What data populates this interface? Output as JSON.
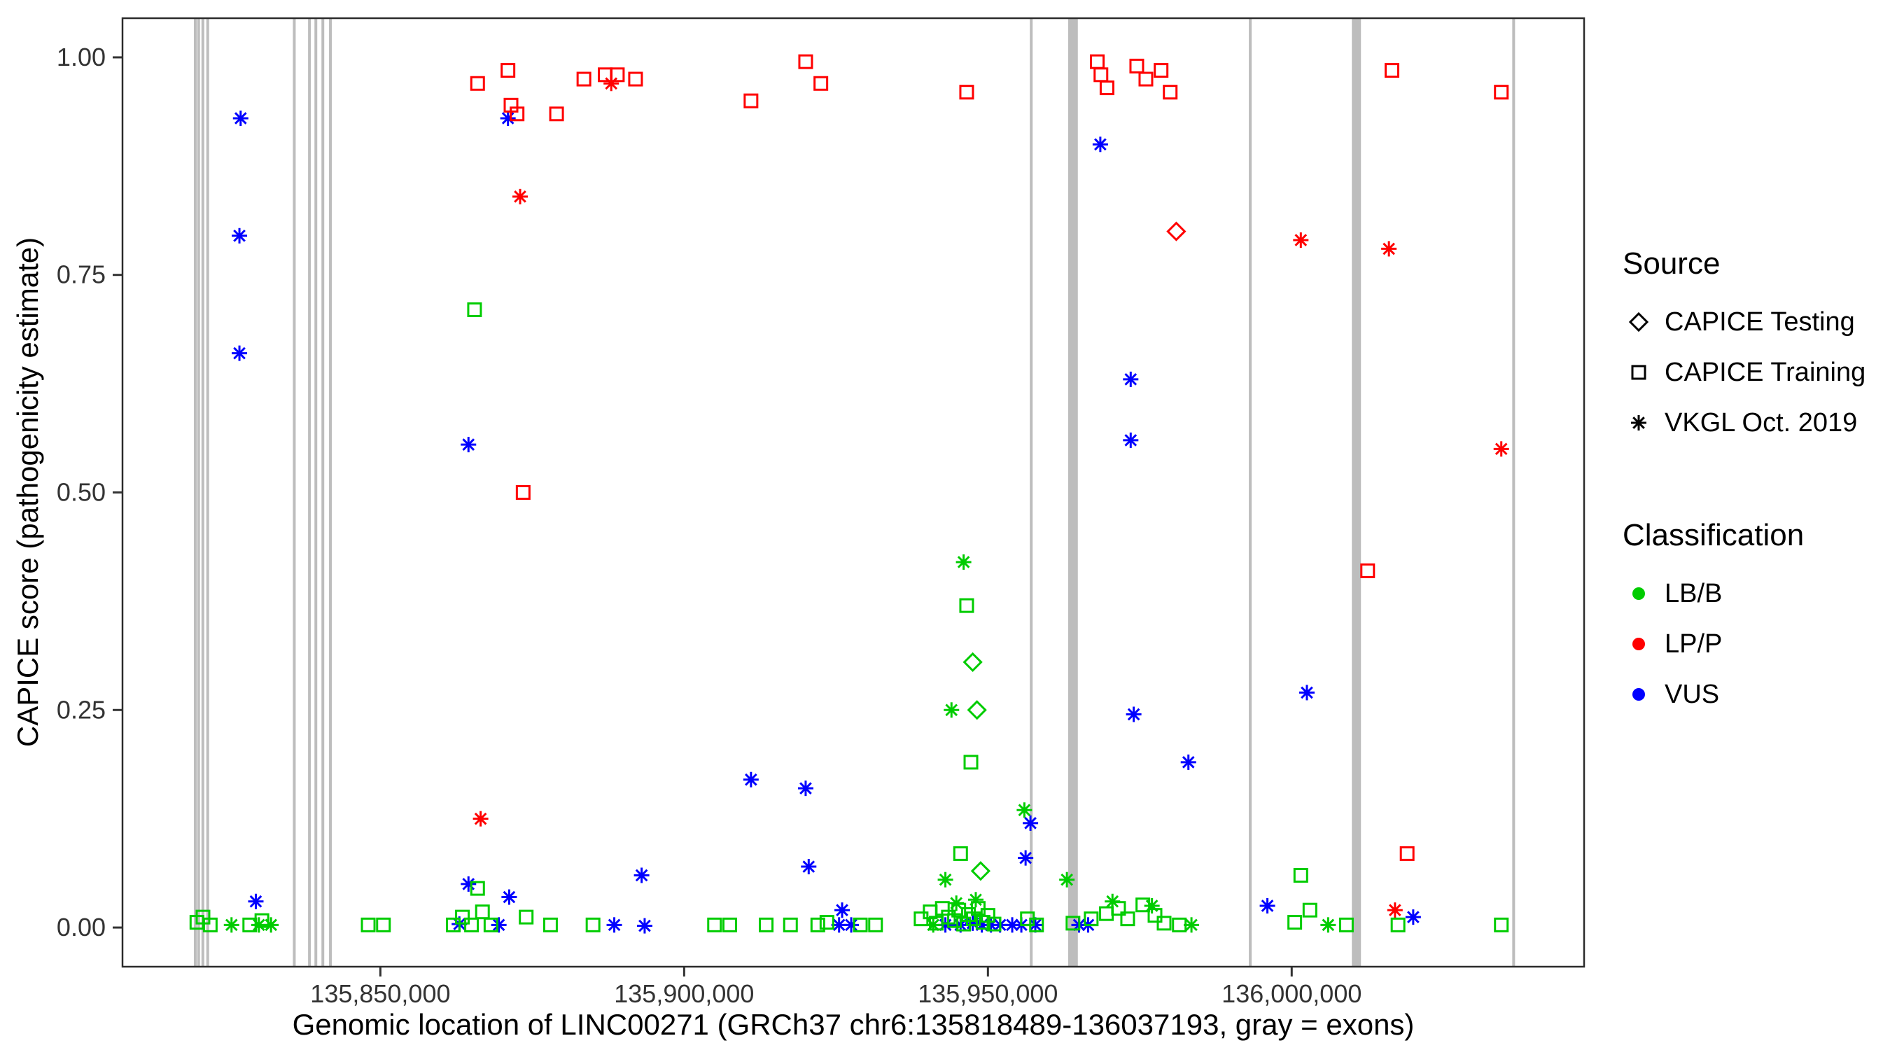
{
  "figure": {
    "background": "#FFFFFF",
    "panel_border": "#2B2B2B",
    "exon_color": "#BDBDBD"
  },
  "legend": {
    "source": {
      "title": "Source",
      "items": [
        {
          "label": "CAPICE Testing",
          "shape": "diamond"
        },
        {
          "label": "CAPICE Training",
          "shape": "square"
        },
        {
          "label": "VKGL Oct. 2019",
          "shape": "asterisk"
        }
      ]
    },
    "classification": {
      "title": "Classification",
      "items": [
        {
          "label": "LB/B",
          "color": "#00CC00"
        },
        {
          "label": "LP/P",
          "color": "#FF0000"
        },
        {
          "label": "VUS",
          "color": "#0000FF"
        }
      ]
    }
  },
  "chart_data": {
    "type": "scatter",
    "title": "",
    "xlabel": "Genomic location of LINC00271 (GRCh37 chr6:135818489-136037193, gray = exons)",
    "ylabel": "CAPICE score (pathogenicity estimate)",
    "xlim": [
      135807554,
      136048128
    ],
    "ylim": [
      -0.045,
      1.045
    ],
    "grid": false,
    "legend_position": "right",
    "xticks": [
      {
        "value": 135850000,
        "label": "135,850,000"
      },
      {
        "value": 135900000,
        "label": "135,900,000"
      },
      {
        "value": 135950000,
        "label": "135,950,000"
      },
      {
        "value": 136000000,
        "label": "136,000,000"
      }
    ],
    "yticks": [
      {
        "value": 0.0,
        "label": "0.00"
      },
      {
        "value": 0.25,
        "label": "0.25"
      },
      {
        "value": 0.5,
        "label": "0.50"
      },
      {
        "value": 0.75,
        "label": "0.75"
      },
      {
        "value": 1.0,
        "label": "1.00"
      }
    ],
    "shape_key": {
      "testing": "diamond",
      "training": "square",
      "vkgl": "asterisk"
    },
    "color_key": {
      "LB/B": "#00CC00",
      "LP/P": "#FF0000",
      "VUS": "#0000FF"
    },
    "exons": [
      [
        135819300,
        135819550
      ],
      [
        135819850,
        135820100
      ],
      [
        135820550,
        135820800
      ],
      [
        135821350,
        135821600
      ],
      [
        135835600,
        135835850
      ],
      [
        135838100,
        135838350
      ],
      [
        135839150,
        135839400
      ],
      [
        135840300,
        135840550
      ],
      [
        135841550,
        135841800
      ],
      [
        135956900,
        135957150
      ],
      [
        135963200,
        135964800
      ],
      [
        135992950,
        135993200
      ],
      [
        136009900,
        136011400
      ],
      [
        136036300,
        136036650
      ]
    ],
    "points": [
      {
        "x": 135827000,
        "y": 0.93,
        "source": "vkgl",
        "class": "VUS"
      },
      {
        "x": 135826800,
        "y": 0.795,
        "source": "vkgl",
        "class": "VUS"
      },
      {
        "x": 135826800,
        "y": 0.66,
        "source": "vkgl",
        "class": "VUS"
      },
      {
        "x": 135829500,
        "y": 0.03,
        "source": "vkgl",
        "class": "VUS"
      },
      {
        "x": 135864500,
        "y": 0.555,
        "source": "vkgl",
        "class": "VUS"
      },
      {
        "x": 135864500,
        "y": 0.05,
        "source": "vkgl",
        "class": "VUS"
      },
      {
        "x": 135871000,
        "y": 0.93,
        "source": "vkgl",
        "class": "VUS"
      },
      {
        "x": 135871200,
        "y": 0.035,
        "source": "vkgl",
        "class": "VUS"
      },
      {
        "x": 135863000,
        "y": 0.004,
        "source": "vkgl",
        "class": "VUS"
      },
      {
        "x": 135869500,
        "y": 0.003,
        "source": "vkgl",
        "class": "VUS"
      },
      {
        "x": 135888500,
        "y": 0.003,
        "source": "vkgl",
        "class": "VUS"
      },
      {
        "x": 135893000,
        "y": 0.06,
        "source": "vkgl",
        "class": "VUS"
      },
      {
        "x": 135893500,
        "y": 0.002,
        "source": "vkgl",
        "class": "VUS"
      },
      {
        "x": 135911000,
        "y": 0.17,
        "source": "vkgl",
        "class": "VUS"
      },
      {
        "x": 135920000,
        "y": 0.16,
        "source": "vkgl",
        "class": "VUS"
      },
      {
        "x": 135920500,
        "y": 0.07,
        "source": "vkgl",
        "class": "VUS"
      },
      {
        "x": 135926000,
        "y": 0.02,
        "source": "vkgl",
        "class": "VUS"
      },
      {
        "x": 135925500,
        "y": 0.003,
        "source": "vkgl",
        "class": "VUS"
      },
      {
        "x": 135927500,
        "y": 0.003,
        "source": "vkgl",
        "class": "VUS"
      },
      {
        "x": 135943000,
        "y": 0.003,
        "source": "vkgl",
        "class": "VUS"
      },
      {
        "x": 135945500,
        "y": 0.003,
        "source": "vkgl",
        "class": "VUS"
      },
      {
        "x": 135947500,
        "y": 0.005,
        "source": "vkgl",
        "class": "VUS"
      },
      {
        "x": 135949000,
        "y": 0.003,
        "source": "vkgl",
        "class": "VUS"
      },
      {
        "x": 135950500,
        "y": 0.003,
        "source": "vkgl",
        "class": "VUS"
      },
      {
        "x": 135952000,
        "y": 0.003,
        "source": "vkgl",
        "class": "VUS"
      },
      {
        "x": 135957000,
        "y": 0.12,
        "source": "vkgl",
        "class": "VUS"
      },
      {
        "x": 135956200,
        "y": 0.08,
        "source": "vkgl",
        "class": "VUS"
      },
      {
        "x": 135954000,
        "y": 0.003,
        "source": "vkgl",
        "class": "VUS"
      },
      {
        "x": 135955500,
        "y": 0.003,
        "source": "vkgl",
        "class": "VUS"
      },
      {
        "x": 135957800,
        "y": 0.003,
        "source": "vkgl",
        "class": "VUS"
      },
      {
        "x": 135968500,
        "y": 0.9,
        "source": "vkgl",
        "class": "VUS"
      },
      {
        "x": 135973500,
        "y": 0.63,
        "source": "vkgl",
        "class": "VUS"
      },
      {
        "x": 135973500,
        "y": 0.56,
        "source": "vkgl",
        "class": "VUS"
      },
      {
        "x": 135974000,
        "y": 0.245,
        "source": "vkgl",
        "class": "VUS"
      },
      {
        "x": 135983000,
        "y": 0.19,
        "source": "vkgl",
        "class": "VUS"
      },
      {
        "x": 135965000,
        "y": 0.003,
        "source": "vkgl",
        "class": "VUS"
      },
      {
        "x": 135966500,
        "y": 0.003,
        "source": "vkgl",
        "class": "VUS"
      },
      {
        "x": 135996000,
        "y": 0.025,
        "source": "vkgl",
        "class": "VUS"
      },
      {
        "x": 136002500,
        "y": 0.27,
        "source": "vkgl",
        "class": "VUS"
      },
      {
        "x": 136020000,
        "y": 0.012,
        "source": "vkgl",
        "class": "VUS"
      },
      {
        "x": 135866000,
        "y": 0.97,
        "source": "training",
        "class": "LP/P"
      },
      {
        "x": 135871000,
        "y": 0.985,
        "source": "training",
        "class": "LP/P"
      },
      {
        "x": 135871500,
        "y": 0.945,
        "source": "training",
        "class": "LP/P"
      },
      {
        "x": 135872500,
        "y": 0.935,
        "source": "training",
        "class": "LP/P"
      },
      {
        "x": 135873500,
        "y": 0.5,
        "source": "training",
        "class": "LP/P"
      },
      {
        "x": 135879000,
        "y": 0.935,
        "source": "training",
        "class": "LP/P"
      },
      {
        "x": 135883500,
        "y": 0.975,
        "source": "training",
        "class": "LP/P"
      },
      {
        "x": 135887000,
        "y": 0.98,
        "source": "training",
        "class": "LP/P"
      },
      {
        "x": 135889000,
        "y": 0.98,
        "source": "training",
        "class": "LP/P"
      },
      {
        "x": 135892000,
        "y": 0.975,
        "source": "training",
        "class": "LP/P"
      },
      {
        "x": 135911000,
        "y": 0.95,
        "source": "training",
        "class": "LP/P"
      },
      {
        "x": 135920000,
        "y": 0.995,
        "source": "training",
        "class": "LP/P"
      },
      {
        "x": 135922500,
        "y": 0.97,
        "source": "training",
        "class": "LP/P"
      },
      {
        "x": 135946500,
        "y": 0.96,
        "source": "training",
        "class": "LP/P"
      },
      {
        "x": 135968000,
        "y": 0.995,
        "source": "training",
        "class": "LP/P"
      },
      {
        "x": 135968600,
        "y": 0.98,
        "source": "training",
        "class": "LP/P"
      },
      {
        "x": 135969600,
        "y": 0.965,
        "source": "training",
        "class": "LP/P"
      },
      {
        "x": 135974500,
        "y": 0.99,
        "source": "training",
        "class": "LP/P"
      },
      {
        "x": 135976000,
        "y": 0.975,
        "source": "training",
        "class": "LP/P"
      },
      {
        "x": 135978500,
        "y": 0.985,
        "source": "training",
        "class": "LP/P"
      },
      {
        "x": 135980000,
        "y": 0.96,
        "source": "training",
        "class": "LP/P"
      },
      {
        "x": 136012500,
        "y": 0.41,
        "source": "training",
        "class": "LP/P"
      },
      {
        "x": 136016500,
        "y": 0.985,
        "source": "training",
        "class": "LP/P"
      },
      {
        "x": 136019000,
        "y": 0.085,
        "source": "training",
        "class": "LP/P"
      },
      {
        "x": 136034500,
        "y": 0.96,
        "source": "training",
        "class": "LP/P"
      },
      {
        "x": 135873000,
        "y": 0.84,
        "source": "vkgl",
        "class": "LP/P"
      },
      {
        "x": 135888000,
        "y": 0.97,
        "source": "vkgl",
        "class": "LP/P"
      },
      {
        "x": 135866500,
        "y": 0.125,
        "source": "vkgl",
        "class": "LP/P"
      },
      {
        "x": 136001500,
        "y": 0.79,
        "source": "vkgl",
        "class": "LP/P"
      },
      {
        "x": 136016000,
        "y": 0.78,
        "source": "vkgl",
        "class": "LP/P"
      },
      {
        "x": 136017000,
        "y": 0.02,
        "source": "vkgl",
        "class": "LP/P"
      },
      {
        "x": 136034500,
        "y": 0.55,
        "source": "vkgl",
        "class": "LP/P"
      },
      {
        "x": 135981000,
        "y": 0.8,
        "source": "testing",
        "class": "LP/P"
      },
      {
        "x": 135865500,
        "y": 0.71,
        "source": "training",
        "class": "LB/B"
      },
      {
        "x": 135946500,
        "y": 0.37,
        "source": "training",
        "class": "LB/B"
      },
      {
        "x": 135947200,
        "y": 0.19,
        "source": "training",
        "class": "LB/B"
      },
      {
        "x": 135945500,
        "y": 0.085,
        "source": "training",
        "class": "LB/B"
      },
      {
        "x": 135866000,
        "y": 0.045,
        "source": "training",
        "class": "LB/B"
      },
      {
        "x": 136001500,
        "y": 0.06,
        "source": "training",
        "class": "LB/B"
      },
      {
        "x": 135819800,
        "y": 0.006,
        "source": "training",
        "class": "LB/B"
      },
      {
        "x": 135820800,
        "y": 0.012,
        "source": "training",
        "class": "LB/B"
      },
      {
        "x": 135822000,
        "y": 0.003,
        "source": "training",
        "class": "LB/B"
      },
      {
        "x": 135828500,
        "y": 0.003,
        "source": "training",
        "class": "LB/B"
      },
      {
        "x": 135830500,
        "y": 0.008,
        "source": "training",
        "class": "LB/B"
      },
      {
        "x": 135848000,
        "y": 0.003,
        "source": "training",
        "class": "LB/B"
      },
      {
        "x": 135850500,
        "y": 0.003,
        "source": "training",
        "class": "LB/B"
      },
      {
        "x": 135862000,
        "y": 0.003,
        "source": "training",
        "class": "LB/B"
      },
      {
        "x": 135863500,
        "y": 0.012,
        "source": "training",
        "class": "LB/B"
      },
      {
        "x": 135865000,
        "y": 0.003,
        "source": "training",
        "class": "LB/B"
      },
      {
        "x": 135866800,
        "y": 0.018,
        "source": "training",
        "class": "LB/B"
      },
      {
        "x": 135868200,
        "y": 0.003,
        "source": "training",
        "class": "LB/B"
      },
      {
        "x": 135874000,
        "y": 0.012,
        "source": "training",
        "class": "LB/B"
      },
      {
        "x": 135878000,
        "y": 0.003,
        "source": "training",
        "class": "LB/B"
      },
      {
        "x": 135885000,
        "y": 0.003,
        "source": "training",
        "class": "LB/B"
      },
      {
        "x": 135905000,
        "y": 0.003,
        "source": "training",
        "class": "LB/B"
      },
      {
        "x": 135907500,
        "y": 0.003,
        "source": "training",
        "class": "LB/B"
      },
      {
        "x": 135913500,
        "y": 0.003,
        "source": "training",
        "class": "LB/B"
      },
      {
        "x": 135917500,
        "y": 0.003,
        "source": "training",
        "class": "LB/B"
      },
      {
        "x": 135922000,
        "y": 0.003,
        "source": "training",
        "class": "LB/B"
      },
      {
        "x": 135923500,
        "y": 0.006,
        "source": "training",
        "class": "LB/B"
      },
      {
        "x": 135929000,
        "y": 0.003,
        "source": "training",
        "class": "LB/B"
      },
      {
        "x": 135931500,
        "y": 0.003,
        "source": "training",
        "class": "LB/B"
      },
      {
        "x": 135939000,
        "y": 0.01,
        "source": "training",
        "class": "LB/B"
      },
      {
        "x": 135940500,
        "y": 0.018,
        "source": "training",
        "class": "LB/B"
      },
      {
        "x": 135941500,
        "y": 0.005,
        "source": "training",
        "class": "LB/B"
      },
      {
        "x": 135942500,
        "y": 0.022,
        "source": "training",
        "class": "LB/B"
      },
      {
        "x": 135943500,
        "y": 0.012,
        "source": "training",
        "class": "LB/B"
      },
      {
        "x": 135944500,
        "y": 0.008,
        "source": "training",
        "class": "LB/B"
      },
      {
        "x": 135945200,
        "y": 0.02,
        "source": "training",
        "class": "LB/B"
      },
      {
        "x": 135946000,
        "y": 0.004,
        "source": "training",
        "class": "LB/B"
      },
      {
        "x": 135946800,
        "y": 0.015,
        "source": "training",
        "class": "LB/B"
      },
      {
        "x": 135947600,
        "y": 0.01,
        "source": "training",
        "class": "LB/B"
      },
      {
        "x": 135948400,
        "y": 0.022,
        "source": "training",
        "class": "LB/B"
      },
      {
        "x": 135949200,
        "y": 0.006,
        "source": "training",
        "class": "LB/B"
      },
      {
        "x": 135950000,
        "y": 0.014,
        "source": "training",
        "class": "LB/B"
      },
      {
        "x": 135951000,
        "y": 0.004,
        "source": "training",
        "class": "LB/B"
      },
      {
        "x": 135956500,
        "y": 0.01,
        "source": "training",
        "class": "LB/B"
      },
      {
        "x": 135958000,
        "y": 0.003,
        "source": "training",
        "class": "LB/B"
      },
      {
        "x": 135964000,
        "y": 0.005,
        "source": "training",
        "class": "LB/B"
      },
      {
        "x": 135967000,
        "y": 0.01,
        "source": "training",
        "class": "LB/B"
      },
      {
        "x": 135969500,
        "y": 0.016,
        "source": "training",
        "class": "LB/B"
      },
      {
        "x": 135971500,
        "y": 0.022,
        "source": "training",
        "class": "LB/B"
      },
      {
        "x": 135973000,
        "y": 0.01,
        "source": "training",
        "class": "LB/B"
      },
      {
        "x": 135975500,
        "y": 0.026,
        "source": "training",
        "class": "LB/B"
      },
      {
        "x": 135977500,
        "y": 0.014,
        "source": "training",
        "class": "LB/B"
      },
      {
        "x": 135979000,
        "y": 0.005,
        "source": "training",
        "class": "LB/B"
      },
      {
        "x": 135981500,
        "y": 0.003,
        "source": "training",
        "class": "LB/B"
      },
      {
        "x": 136000500,
        "y": 0.006,
        "source": "training",
        "class": "LB/B"
      },
      {
        "x": 136003000,
        "y": 0.02,
        "source": "training",
        "class": "LB/B"
      },
      {
        "x": 136009000,
        "y": 0.003,
        "source": "training",
        "class": "LB/B"
      },
      {
        "x": 136017500,
        "y": 0.003,
        "source": "training",
        "class": "LB/B"
      },
      {
        "x": 136034500,
        "y": 0.003,
        "source": "training",
        "class": "LB/B"
      },
      {
        "x": 135946000,
        "y": 0.42,
        "source": "vkgl",
        "class": "LB/B"
      },
      {
        "x": 135944000,
        "y": 0.25,
        "source": "vkgl",
        "class": "LB/B"
      },
      {
        "x": 135943000,
        "y": 0.055,
        "source": "vkgl",
        "class": "LB/B"
      },
      {
        "x": 135956000,
        "y": 0.135,
        "source": "vkgl",
        "class": "LB/B"
      },
      {
        "x": 135963000,
        "y": 0.055,
        "source": "vkgl",
        "class": "LB/B"
      },
      {
        "x": 135941000,
        "y": 0.003,
        "source": "vkgl",
        "class": "LB/B"
      },
      {
        "x": 135944800,
        "y": 0.028,
        "source": "vkgl",
        "class": "LB/B"
      },
      {
        "x": 135948000,
        "y": 0.032,
        "source": "vkgl",
        "class": "LB/B"
      },
      {
        "x": 135970500,
        "y": 0.03,
        "source": "vkgl",
        "class": "LB/B"
      },
      {
        "x": 135977000,
        "y": 0.025,
        "source": "vkgl",
        "class": "LB/B"
      },
      {
        "x": 135983500,
        "y": 0.003,
        "source": "vkgl",
        "class": "LB/B"
      },
      {
        "x": 135825500,
        "y": 0.003,
        "source": "vkgl",
        "class": "LB/B"
      },
      {
        "x": 135830000,
        "y": 0.003,
        "source": "vkgl",
        "class": "LB/B"
      },
      {
        "x": 135832000,
        "y": 0.003,
        "source": "vkgl",
        "class": "LB/B"
      },
      {
        "x": 136006000,
        "y": 0.003,
        "source": "vkgl",
        "class": "LB/B"
      },
      {
        "x": 135947500,
        "y": 0.305,
        "source": "testing",
        "class": "LB/B"
      },
      {
        "x": 135948200,
        "y": 0.25,
        "source": "testing",
        "class": "LB/B"
      },
      {
        "x": 135948800,
        "y": 0.065,
        "source": "testing",
        "class": "LB/B"
      }
    ]
  }
}
